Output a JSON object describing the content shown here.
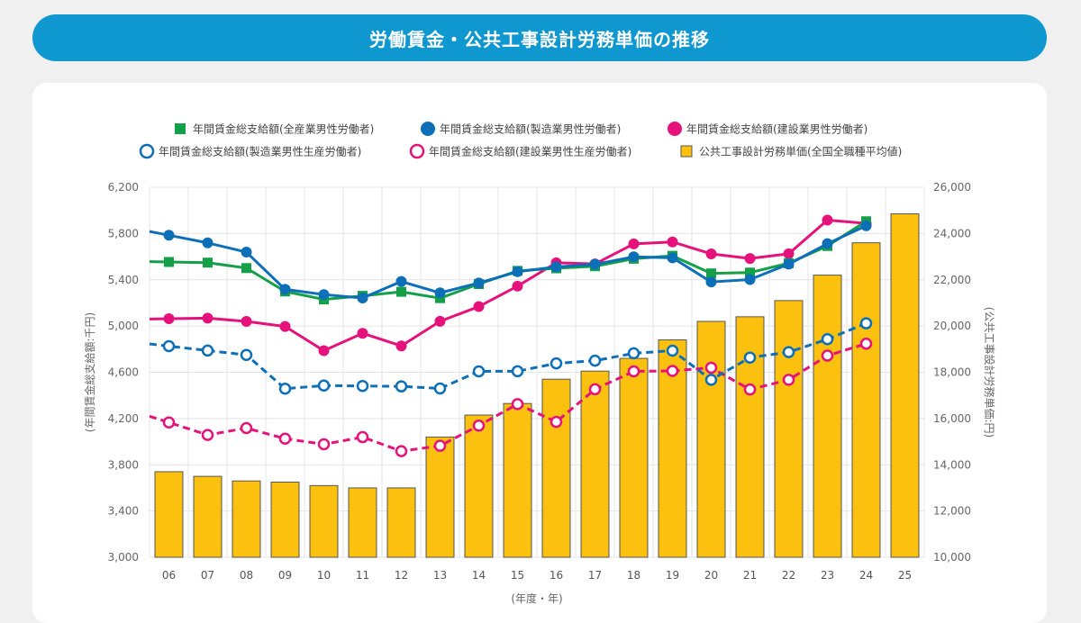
{
  "page": {
    "title": "労働賃金・公共工事設計労務単価の推移"
  },
  "colors": {
    "title_bg": "#0f97cf",
    "green": "#13a048",
    "blue": "#0c6fb8",
    "magenta": "#e6127b",
    "bar": "#fcc10f",
    "bar_border": "#555555",
    "grid": "#e4e4e4",
    "axis_text": "#666666"
  },
  "chart_data": {
    "type": "bar+line",
    "title": "労働賃金・公共工事設計労務単価の推移",
    "categories": [
      "06",
      "07",
      "08",
      "09",
      "10",
      "11",
      "12",
      "13",
      "14",
      "15",
      "16",
      "17",
      "18",
      "19",
      "20",
      "21",
      "22",
      "23",
      "24",
      "25"
    ],
    "xlabel": "(年度・年)",
    "ylabel_left": "(年間賃金総支給額:千円)",
    "ylabel_right": "(公共工事設計労務単価:円)",
    "ylim_left": [
      3000,
      6200
    ],
    "ylim_right": [
      10000,
      26000
    ],
    "yticks_left": [
      "3,000",
      "3,400",
      "3,800",
      "4,200",
      "4,600",
      "5,000",
      "5,400",
      "5,800",
      "6,200"
    ],
    "yticks_right": [
      "10,000",
      "12,000",
      "14,000",
      "16,000",
      "18,000",
      "20,000",
      "22,000",
      "24,000",
      "26,000"
    ],
    "grid": true,
    "legend_position": "top",
    "series": [
      {
        "name": "年間賃金総支給額(全産業男性労働者)",
        "type": "line",
        "axis": "left",
        "color": "#13a048",
        "marker": "square",
        "dashed": false,
        "values": [
          5554,
          5548,
          5501,
          5299,
          5230,
          5261,
          5296,
          5241,
          5363,
          5477,
          5499,
          5517,
          5582,
          5607,
          5455,
          5462,
          5543,
          5692,
          5906,
          null
        ]
      },
      {
        "name": "年間賃金総支給額(製造業男性労働者)",
        "type": "line",
        "axis": "left",
        "color": "#0c6fb8",
        "marker": "filled-circle",
        "dashed": false,
        "values": [
          5785,
          5719,
          5639,
          5317,
          5272,
          5242,
          5385,
          5287,
          5372,
          5470,
          5511,
          5534,
          5599,
          5590,
          5381,
          5402,
          5535,
          5712,
          5867,
          null
        ]
      },
      {
        "name": "年間賃金総支給額(建設業男性労働者)",
        "type": "line",
        "axis": "left",
        "color": "#e6127b",
        "marker": "filled-circle",
        "dashed": false,
        "values": [
          5063,
          5068,
          5040,
          4996,
          4787,
          4937,
          4828,
          5041,
          5168,
          5345,
          5547,
          5537,
          5710,
          5727,
          5624,
          5584,
          5625,
          5916,
          5888,
          null
        ]
      },
      {
        "name": "年間賃金総支給額(製造業男性生産労働者)",
        "type": "line",
        "axis": "left",
        "color": "#0c6fb8",
        "marker": "open-circle",
        "dashed": true,
        "values": [
          4826,
          4788,
          4750,
          4458,
          4485,
          4481,
          4478,
          4460,
          4608,
          4609,
          4677,
          4700,
          4764,
          4787,
          4535,
          4727,
          4774,
          4886,
          5023,
          null
        ]
      },
      {
        "name": "年間賃金総支給額(建設業男性生産労働者)",
        "type": "line",
        "axis": "left",
        "color": "#e6127b",
        "marker": "open-circle",
        "dashed": true,
        "values": [
          4166,
          4058,
          4117,
          4026,
          3977,
          4039,
          3918,
          3964,
          4139,
          4325,
          4171,
          4453,
          4608,
          4612,
          4639,
          4451,
          4535,
          4744,
          4847,
          null
        ]
      },
      {
        "name": "公共工事設計労務単価(全国全職種平均値)",
        "type": "bar",
        "axis": "right",
        "color": "#fcc10f",
        "marker": "square",
        "values": [
          13700,
          13500,
          13300,
          13250,
          13100,
          13000,
          13000,
          15200,
          16150,
          16650,
          17700,
          18050,
          18600,
          19400,
          20200,
          20400,
          21100,
          22200,
          23600,
          24850
        ]
      }
    ]
  }
}
